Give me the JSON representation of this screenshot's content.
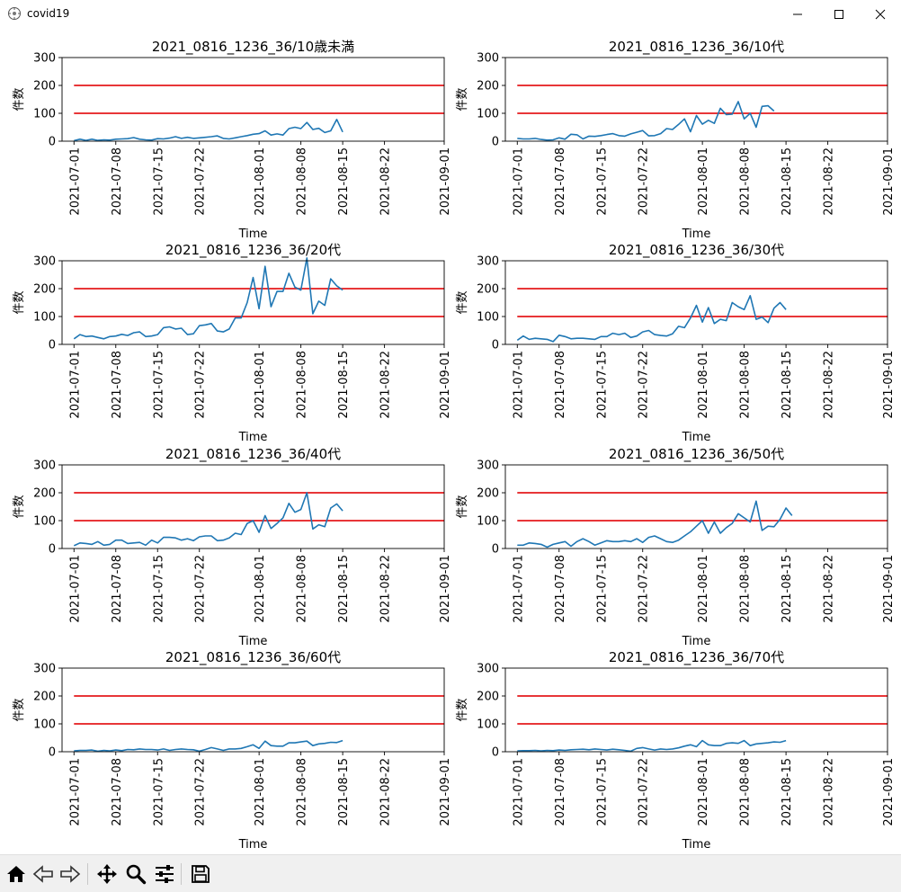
{
  "window": {
    "title": "covid19",
    "controls": [
      "minimize",
      "maximize",
      "close"
    ]
  },
  "toolbar": {
    "tools": [
      {
        "name": "home-icon",
        "label": "home"
      },
      {
        "name": "back-icon",
        "label": "back"
      },
      {
        "name": "forward-icon",
        "label": "forward"
      },
      {
        "name": "pan-icon",
        "label": "pan"
      },
      {
        "name": "zoom-icon",
        "label": "zoom"
      },
      {
        "name": "configure-subplots-icon",
        "label": "configure subplots"
      },
      {
        "name": "save-icon",
        "label": "save"
      }
    ]
  },
  "colors": {
    "series": "#1f77b4",
    "threshold": "#e41a1c"
  },
  "chart_data": [
    {
      "type": "line",
      "title": "2021_0816_1236_36/10歳未満",
      "xlabel": "Time",
      "ylabel": "件数",
      "ylim": [
        0,
        300
      ],
      "xlim": [
        "2021-06-29",
        "2021-09-01"
      ],
      "yticks": [
        "0",
        "100",
        "200",
        "300"
      ],
      "xticks": [
        "2021-07-01",
        "2021-07-08",
        "2021-07-15",
        "2021-07-22",
        "2021-08-01",
        "2021-08-08",
        "2021-08-15",
        "2021-08-22",
        "2021-09-01"
      ],
      "hlines": [
        100,
        200
      ],
      "x_start": "2021-07-01",
      "values": [
        2,
        7,
        3,
        7,
        3,
        5,
        4,
        7,
        8,
        9,
        13,
        7,
        5,
        4,
        9,
        8,
        11,
        16,
        10,
        14,
        10,
        12,
        14,
        16,
        19,
        10,
        8,
        12,
        16,
        20,
        25,
        27,
        37,
        22,
        26,
        22,
        45,
        50,
        45,
        67,
        42,
        46,
        31,
        37,
        78,
        33
      ]
    },
    {
      "type": "line",
      "title": "2021_0816_1236_36/10代",
      "xlabel": "Time",
      "ylabel": "件数",
      "ylim": [
        0,
        300
      ],
      "xlim": [
        "2021-06-29",
        "2021-09-01"
      ],
      "yticks": [
        "0",
        "100",
        "200",
        "300"
      ],
      "xticks": [
        "2021-07-01",
        "2021-07-08",
        "2021-07-15",
        "2021-07-22",
        "2021-08-01",
        "2021-08-08",
        "2021-08-15",
        "2021-08-22",
        "2021-09-01"
      ],
      "hlines": [
        100,
        200
      ],
      "x_start": "2021-07-01",
      "values": [
        10,
        8,
        8,
        10,
        6,
        4,
        5,
        12,
        7,
        25,
        23,
        8,
        18,
        17,
        20,
        24,
        27,
        20,
        18,
        26,
        32,
        38,
        19,
        20,
        27,
        45,
        42,
        60,
        80,
        34,
        92,
        61,
        75,
        64,
        118,
        95,
        97,
        142,
        80,
        100,
        50,
        125,
        127,
        108
      ]
    },
    {
      "type": "line",
      "title": "2021_0816_1236_36/20代",
      "xlabel": "Time",
      "ylabel": "件数",
      "ylim": [
        0,
        300
      ],
      "xlim": [
        "2021-06-29",
        "2021-09-01"
      ],
      "yticks": [
        "0",
        "100",
        "200",
        "300"
      ],
      "xticks": [
        "2021-07-01",
        "2021-07-08",
        "2021-07-15",
        "2021-07-22",
        "2021-08-01",
        "2021-08-08",
        "2021-08-15",
        "2021-08-22",
        "2021-09-01"
      ],
      "hlines": [
        100,
        200
      ],
      "x_start": "2021-07-01",
      "values": [
        20,
        35,
        28,
        30,
        25,
        20,
        28,
        30,
        36,
        32,
        42,
        45,
        28,
        30,
        35,
        60,
        63,
        55,
        58,
        35,
        38,
        67,
        70,
        75,
        48,
        45,
        55,
        95,
        95,
        150,
        240,
        128,
        280,
        135,
        190,
        190,
        255,
        205,
        195,
        310,
        110,
        155,
        140,
        235,
        210,
        195
      ]
    },
    {
      "type": "line",
      "title": "2021_0816_1236_36/30代",
      "xlabel": "Time",
      "ylabel": "件数",
      "ylim": [
        0,
        300
      ],
      "xlim": [
        "2021-06-29",
        "2021-09-01"
      ],
      "yticks": [
        "0",
        "100",
        "200",
        "300"
      ],
      "xticks": [
        "2021-07-01",
        "2021-07-08",
        "2021-07-15",
        "2021-07-22",
        "2021-08-01",
        "2021-08-08",
        "2021-08-15",
        "2021-08-22",
        "2021-09-01"
      ],
      "hlines": [
        100,
        200
      ],
      "x_start": "2021-07-01",
      "values": [
        15,
        30,
        18,
        22,
        20,
        18,
        10,
        33,
        28,
        20,
        22,
        22,
        20,
        18,
        28,
        28,
        40,
        35,
        40,
        25,
        30,
        45,
        50,
        35,
        32,
        30,
        38,
        65,
        60,
        95,
        140,
        80,
        132,
        75,
        90,
        85,
        150,
        135,
        125,
        175,
        90,
        98,
        78,
        130,
        150,
        125
      ]
    },
    {
      "type": "line",
      "title": "2021_0816_1236_36/40代",
      "xlabel": "Time",
      "ylabel": "件数",
      "ylim": [
        0,
        300
      ],
      "xlim": [
        "2021-06-29",
        "2021-09-01"
      ],
      "yticks": [
        "0",
        "100",
        "200",
        "300"
      ],
      "xticks": [
        "2021-07-01",
        "2021-07-08",
        "2021-07-15",
        "2021-07-22",
        "2021-08-01",
        "2021-08-08",
        "2021-08-15",
        "2021-08-22",
        "2021-09-01"
      ],
      "hlines": [
        100,
        200
      ],
      "x_start": "2021-07-01",
      "values": [
        10,
        20,
        18,
        15,
        25,
        12,
        15,
        30,
        30,
        18,
        20,
        22,
        12,
        30,
        20,
        40,
        40,
        38,
        30,
        35,
        28,
        42,
        45,
        45,
        28,
        30,
        38,
        55,
        50,
        90,
        100,
        58,
        118,
        72,
        90,
        110,
        162,
        130,
        140,
        200,
        70,
        85,
        78,
        145,
        160,
        135
      ]
    },
    {
      "type": "line",
      "title": "2021_0816_1236_36/50代",
      "xlabel": "Time",
      "ylabel": "件数",
      "ylim": [
        0,
        300
      ],
      "xlim": [
        "2021-06-29",
        "2021-09-01"
      ],
      "yticks": [
        "0",
        "100",
        "200",
        "300"
      ],
      "xticks": [
        "2021-07-01",
        "2021-07-08",
        "2021-07-15",
        "2021-07-22",
        "2021-08-01",
        "2021-08-08",
        "2021-08-15",
        "2021-08-22",
        "2021-09-01"
      ],
      "hlines": [
        100,
        200
      ],
      "x_start": "2021-07-01",
      "values": [
        12,
        12,
        20,
        18,
        15,
        5,
        15,
        20,
        25,
        8,
        25,
        35,
        25,
        12,
        20,
        28,
        25,
        25,
        28,
        25,
        35,
        22,
        40,
        45,
        35,
        25,
        22,
        30,
        45,
        60,
        80,
        100,
        55,
        95,
        55,
        75,
        90,
        125,
        110,
        95,
        170,
        65,
        80,
        78,
        105,
        145,
        118
      ]
    },
    {
      "type": "line",
      "title": "2021_0816_1236_36/60代",
      "xlabel": "Time",
      "ylabel": "件数",
      "ylim": [
        0,
        300
      ],
      "xlim": [
        "2021-06-29",
        "2021-09-01"
      ],
      "yticks": [
        "0",
        "100",
        "200",
        "300"
      ],
      "xticks": [
        "2021-07-01",
        "2021-07-08",
        "2021-07-15",
        "2021-07-22",
        "2021-08-01",
        "2021-08-08",
        "2021-08-15",
        "2021-08-22",
        "2021-09-01"
      ],
      "hlines": [
        100,
        200
      ],
      "x_start": "2021-07-01",
      "values": [
        3,
        5,
        5,
        6,
        2,
        5,
        3,
        6,
        4,
        8,
        7,
        10,
        8,
        8,
        6,
        10,
        5,
        8,
        10,
        8,
        7,
        2,
        8,
        15,
        10,
        5,
        10,
        10,
        12,
        18,
        25,
        12,
        38,
        22,
        20,
        20,
        32,
        32,
        35,
        38,
        22,
        28,
        30,
        34,
        33,
        40
      ]
    },
    {
      "type": "line",
      "title": "2021_0816_1236_36/70代",
      "xlabel": "Time",
      "ylabel": "件数",
      "ylim": [
        0,
        300
      ],
      "xlim": [
        "2021-06-29",
        "2021-09-01"
      ],
      "yticks": [
        "0",
        "100",
        "200",
        "300"
      ],
      "xticks": [
        "2021-07-01",
        "2021-07-08",
        "2021-07-15",
        "2021-07-22",
        "2021-08-01",
        "2021-08-08",
        "2021-08-15",
        "2021-08-22",
        "2021-09-01"
      ],
      "hlines": [
        100,
        200
      ],
      "x_start": "2021-07-01",
      "values": [
        3,
        4,
        4,
        5,
        3,
        5,
        4,
        6,
        5,
        7,
        8,
        9,
        7,
        10,
        8,
        6,
        9,
        7,
        5,
        2,
        12,
        15,
        10,
        6,
        10,
        8,
        10,
        14,
        20,
        25,
        18,
        40,
        25,
        22,
        22,
        30,
        32,
        30,
        40,
        22,
        28,
        30,
        32,
        35,
        34,
        40
      ]
    }
  ]
}
